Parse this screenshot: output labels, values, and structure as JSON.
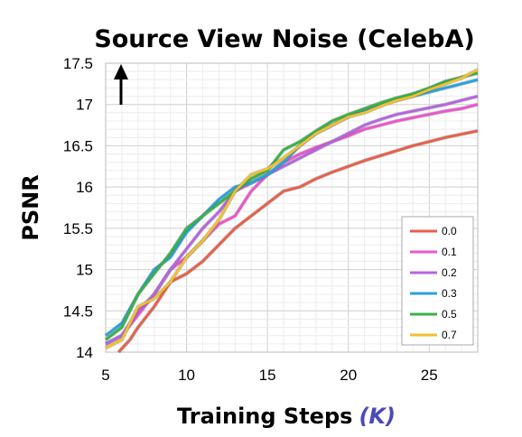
{
  "chart_data": {
    "type": "line",
    "title": "Source View Noise (CelebA)",
    "xlabel": "Training Steps",
    "xlabel_unit": "(K)",
    "ylabel": "PSNR",
    "xlim": [
      5,
      28
    ],
    "ylim": [
      14,
      17.5
    ],
    "xticks": [
      5,
      10,
      15,
      20,
      25
    ],
    "yticks": [
      14,
      14.5,
      15,
      15.5,
      16,
      16.5,
      17,
      17.5
    ],
    "grid": true,
    "legend_position": "bottom-right",
    "arrow": "up",
    "series": [
      {
        "name": "0.0",
        "color": "#e8604a",
        "x": [
          5.8,
          6.5,
          7,
          8,
          9,
          10,
          11,
          12,
          13,
          14,
          15,
          16,
          17,
          18,
          19,
          20,
          21,
          22,
          23,
          24,
          25,
          26,
          27,
          28
        ],
        "y": [
          14.0,
          14.15,
          14.3,
          14.55,
          14.85,
          14.95,
          15.1,
          15.3,
          15.5,
          15.65,
          15.8,
          15.95,
          16.0,
          16.1,
          16.18,
          16.25,
          16.32,
          16.38,
          16.44,
          16.5,
          16.55,
          16.6,
          16.64,
          16.68
        ]
      },
      {
        "name": "0.1",
        "color": "#ee55cc",
        "x": [
          5,
          6,
          7,
          8,
          9,
          10,
          11,
          12,
          13,
          14,
          15,
          16,
          17,
          18,
          19,
          20,
          21,
          22,
          23,
          24,
          25,
          26,
          27,
          28
        ],
        "y": [
          14.1,
          14.2,
          14.45,
          14.7,
          15.0,
          15.15,
          15.35,
          15.55,
          15.65,
          15.95,
          16.15,
          16.3,
          16.4,
          16.48,
          16.55,
          16.62,
          16.7,
          16.75,
          16.8,
          16.84,
          16.88,
          16.92,
          16.95,
          17.0
        ]
      },
      {
        "name": "0.2",
        "color": "#b566e0",
        "x": [
          5,
          6,
          7,
          8,
          9,
          10,
          11,
          12,
          13,
          14,
          15,
          16,
          17,
          18,
          19,
          20,
          21,
          22,
          23,
          24,
          25,
          26,
          27,
          28
        ],
        "y": [
          14.1,
          14.2,
          14.5,
          14.7,
          15.0,
          15.25,
          15.5,
          15.7,
          15.95,
          16.05,
          16.15,
          16.25,
          16.35,
          16.45,
          16.55,
          16.65,
          16.75,
          16.82,
          16.88,
          16.92,
          16.96,
          17.0,
          17.05,
          17.1
        ]
      },
      {
        "name": "0.3",
        "color": "#27a3e0",
        "x": [
          5,
          6,
          7,
          8,
          9,
          10,
          11,
          12,
          13,
          14,
          15,
          16,
          17,
          18,
          19,
          20,
          21,
          22,
          23,
          24,
          25,
          26,
          27,
          28
        ],
        "y": [
          14.2,
          14.35,
          14.7,
          15.0,
          15.15,
          15.45,
          15.65,
          15.85,
          16.0,
          16.05,
          16.15,
          16.3,
          16.5,
          16.65,
          16.75,
          16.85,
          16.92,
          17.0,
          17.05,
          17.1,
          17.15,
          17.2,
          17.25,
          17.3
        ]
      },
      {
        "name": "0.5",
        "color": "#38b24a",
        "x": [
          5,
          6,
          7,
          8,
          9,
          10,
          11,
          12,
          13,
          14,
          15,
          16,
          17,
          18,
          19,
          20,
          21,
          22,
          23,
          24,
          25,
          26,
          27,
          28
        ],
        "y": [
          14.15,
          14.3,
          14.7,
          14.95,
          15.2,
          15.5,
          15.65,
          15.8,
          15.95,
          16.1,
          16.2,
          16.45,
          16.55,
          16.68,
          16.8,
          16.88,
          16.95,
          17.02,
          17.08,
          17.13,
          17.2,
          17.28,
          17.33,
          17.38
        ]
      },
      {
        "name": "0.7",
        "color": "#f0c030",
        "x": [
          5,
          6,
          7,
          8,
          9,
          10,
          11,
          12,
          13,
          14,
          15,
          16,
          17,
          18,
          19,
          20,
          21,
          22,
          23,
          24,
          25,
          26,
          27,
          28
        ],
        "y": [
          14.05,
          14.15,
          14.55,
          14.65,
          14.85,
          15.15,
          15.35,
          15.6,
          15.95,
          16.15,
          16.22,
          16.35,
          16.5,
          16.65,
          16.75,
          16.85,
          16.9,
          16.98,
          17.05,
          17.1,
          17.18,
          17.25,
          17.32,
          17.42
        ]
      }
    ]
  }
}
